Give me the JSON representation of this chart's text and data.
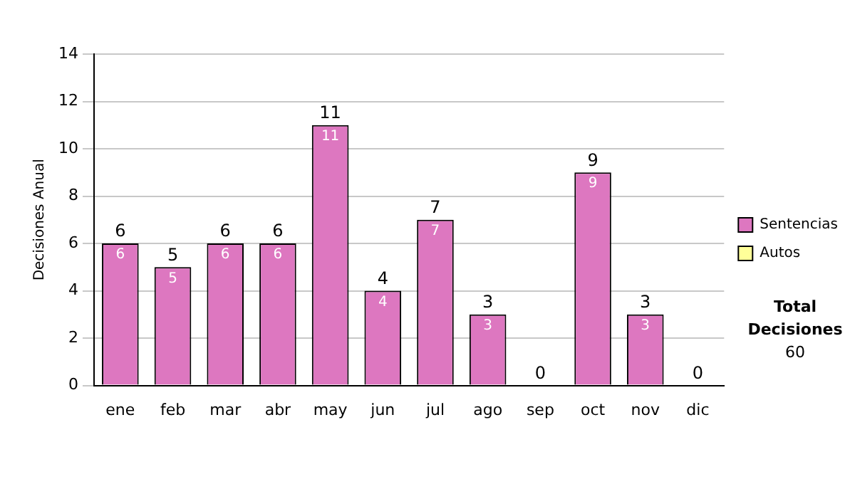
{
  "chart_data": {
    "type": "bar",
    "ylabel": "Decisiones Anual",
    "categories": [
      "ene",
      "feb",
      "mar",
      "abr",
      "may",
      "jun",
      "jul",
      "ago",
      "sep",
      "oct",
      "nov",
      "dic"
    ],
    "series": [
      {
        "name": "Sentencias",
        "color": "#dd77c0",
        "values": [
          6,
          5,
          6,
          6,
          11,
          4,
          7,
          3,
          0,
          9,
          3,
          0
        ],
        "value_labels": [
          "6",
          "5",
          "6",
          "6",
          "11",
          "4",
          "7",
          "3",
          null,
          "9",
          "3",
          null
        ]
      },
      {
        "name": "Autos",
        "color": "#ffff99",
        "values": [
          0,
          0,
          0,
          0,
          0,
          0,
          0,
          0,
          0,
          0,
          0,
          0
        ]
      }
    ],
    "stacked": true,
    "totals": [
      "6",
      "5",
      "6",
      "6",
      "11",
      "4",
      "7",
      "3",
      "0",
      "9",
      "3",
      "0"
    ],
    "ylim": [
      0,
      14
    ],
    "yticks": [
      0,
      2,
      4,
      6,
      8,
      10,
      12,
      14
    ],
    "grid": "y",
    "legend": "right",
    "annotations": [
      "Total Decisiones",
      "60"
    ]
  }
}
